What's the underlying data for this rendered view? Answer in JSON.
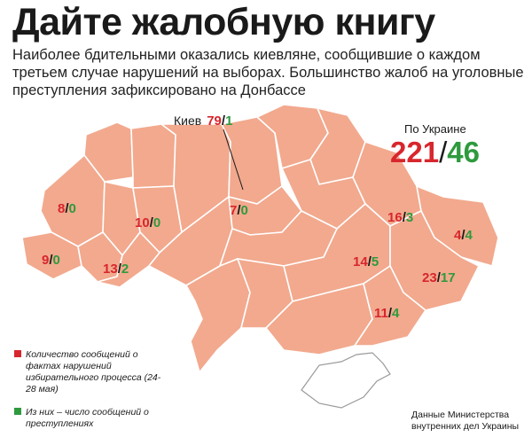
{
  "title": "Дайте жалобную книгу",
  "subtitle": "Наиболее бдительными оказались киевляне, сообщившие о каждом третьем случае нарушений на выборах. Большинство жалоб на уголовные преступления зафиксировано на Донбассе",
  "totals": {
    "caption": "По Украине",
    "violations": "221",
    "crimes": "46"
  },
  "kiev": {
    "name": "Киев",
    "violations": "79",
    "crimes": "1"
  },
  "regions": [
    {
      "violations": "8",
      "crimes": "0"
    },
    {
      "violations": "9",
      "crimes": "0"
    },
    {
      "violations": "13",
      "crimes": "2"
    },
    {
      "violations": "10",
      "crimes": "0"
    },
    {
      "violations": "7",
      "crimes": "0"
    },
    {
      "violations": "16",
      "crimes": "3"
    },
    {
      "violations": "4",
      "crimes": "4"
    },
    {
      "violations": "14",
      "crimes": "5"
    },
    {
      "violations": "23",
      "crimes": "17"
    },
    {
      "violations": "11",
      "crimes": "4"
    }
  ],
  "legend": {
    "violations_label": "Количество сообщений о фактах нарушений избирательного процесса (24-28 мая)",
    "crimes_label": "Из них – число сообщений о преступлениях",
    "violations_color": "#d8262d",
    "crimes_color": "#2e9a3e"
  },
  "source": "Данные Министерства внутренних дел Украины",
  "colors": {
    "map_fill": "#f2a98e",
    "region_border": "#ffffff"
  }
}
